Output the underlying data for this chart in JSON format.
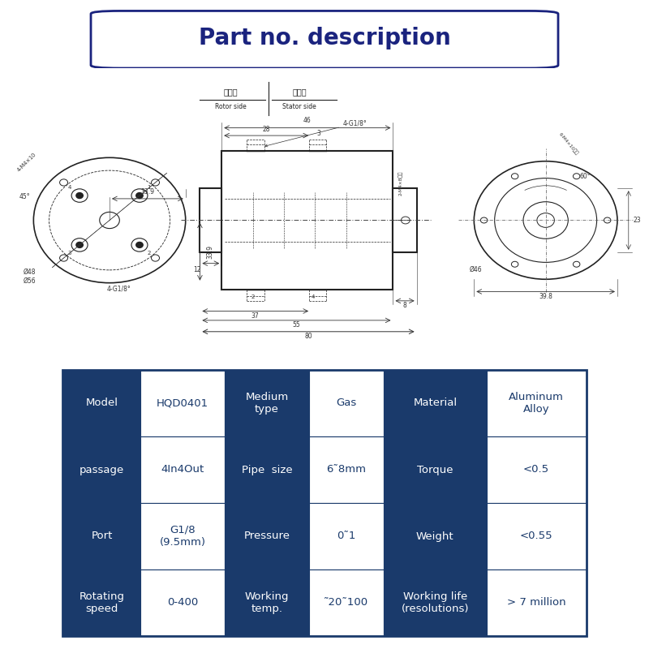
{
  "title": "Part no. description",
  "title_fontsize": 20,
  "title_color": "#1a237e",
  "bg_color": "#ffffff",
  "table_header_bg": "#1a3a6b",
  "table_header_fg": "#ffffff",
  "table_cell_bg": "#ffffff",
  "table_cell_fg": "#1a3a6b",
  "table_data": [
    [
      "Model",
      "HQD0401",
      "Medium\ntype",
      "Gas",
      "Material",
      "Aluminum\nAlloy"
    ],
    [
      "passage",
      "4In4Out",
      "Pipe  size",
      "6˜8mm",
      "Torque",
      "<0.5"
    ],
    [
      "Port",
      "G1/8\n(9.5mm)",
      "Pressure",
      "0˜1",
      "Weight",
      "<0.55"
    ],
    [
      "Rotating\nspeed",
      "0-400",
      "Working\ntemp.",
      "˜20˜100",
      "Working life\n(resolutions)",
      "> 7 million"
    ]
  ],
  "border_color": "#1a3a6b",
  "dim_color": "#333333",
  "line_color": "#222222"
}
